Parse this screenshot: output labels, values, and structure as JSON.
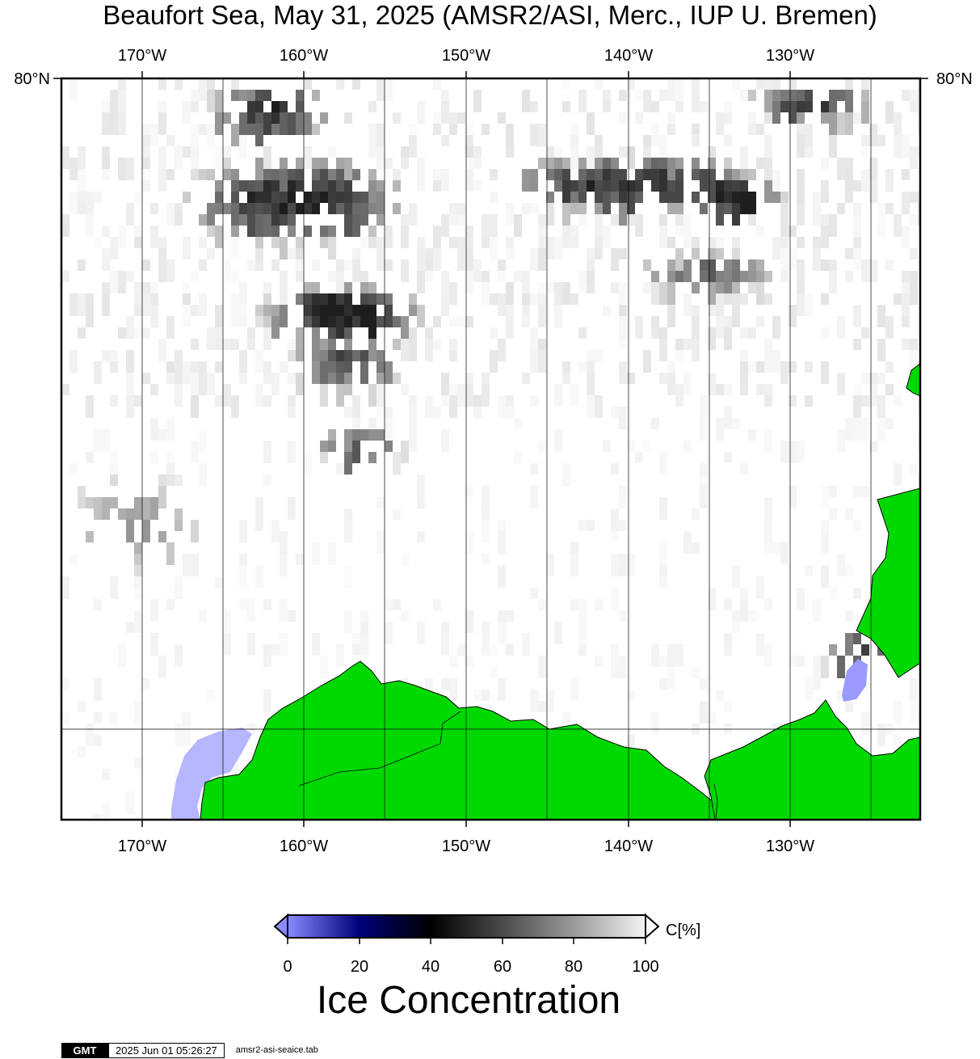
{
  "title": "Beaufort Sea, May 31, 2025 (AMSR2/ASI, Merc., IUP U. Bremen)",
  "map": {
    "lon_top_labels": [
      "170°W",
      "160°W",
      "150°W",
      "140°W",
      "130°W"
    ],
    "lon_bottom_labels": [
      "170°W",
      "160°W",
      "150°W",
      "140°W",
      "130°W"
    ],
    "lat_left_label": "80°N",
    "lat_right_label": "80°N",
    "colors": {
      "land": "#00d900",
      "ocean_open": "#ffffff",
      "lake_ice": "#b6b6ff",
      "grid": "#000000"
    }
  },
  "colorbar": {
    "unit_label": "C[%]",
    "tick_labels": [
      "0",
      "20",
      "40",
      "60",
      "80",
      "100"
    ],
    "title": "Ice Concentration",
    "stops": [
      {
        "value": 0,
        "color": "#8a8aff"
      },
      {
        "value": 20,
        "color": "#00007a"
      },
      {
        "value": 40,
        "color": "#000000"
      },
      {
        "value": 60,
        "color": "#4a4a4a"
      },
      {
        "value": 80,
        "color": "#9a9a9a"
      },
      {
        "value": 100,
        "color": "#f4f4f4"
      }
    ]
  },
  "footer": {
    "logo_text": "GMT",
    "timestamp": "2025 Jun 01 05:26:27",
    "file_name": "amsr2-asi-seaice.tab"
  }
}
